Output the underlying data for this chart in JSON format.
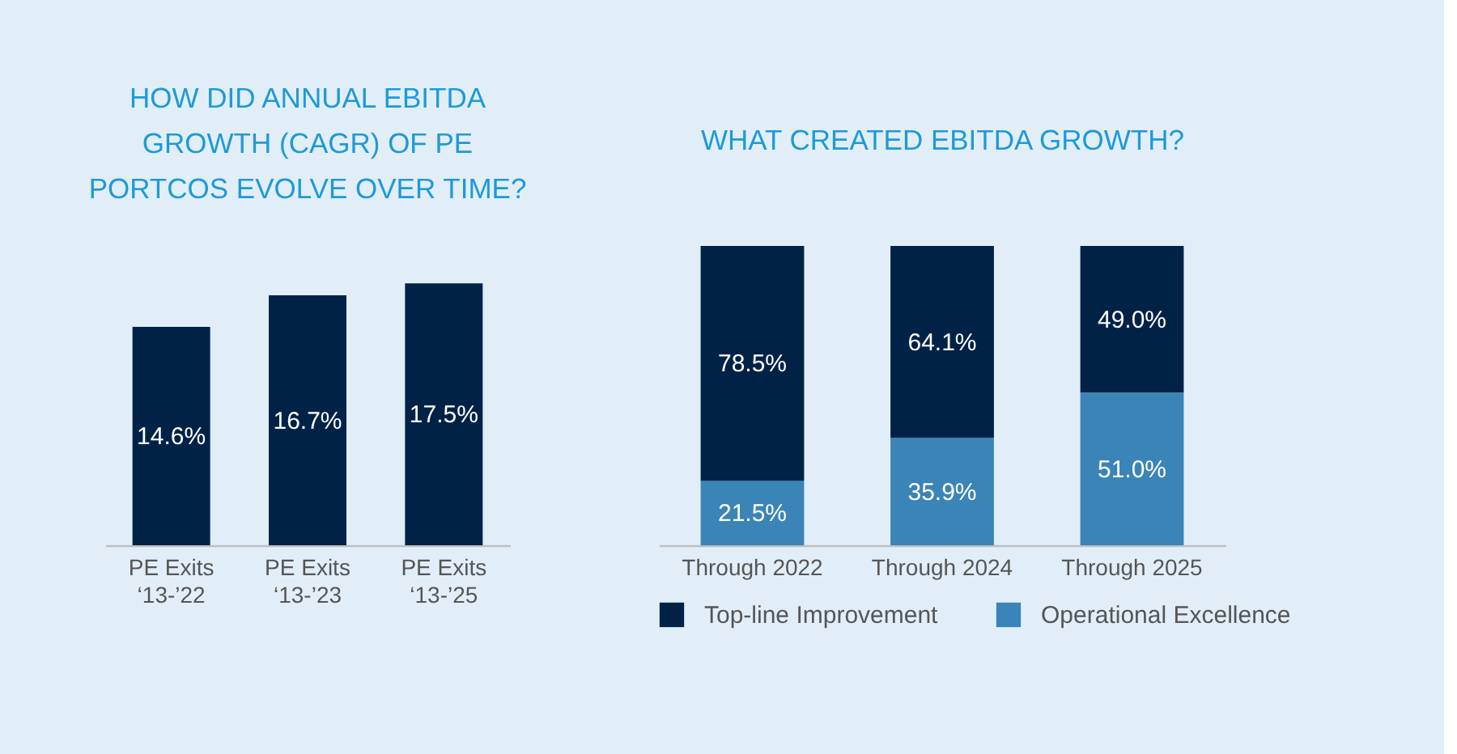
{
  "chart_data": [
    {
      "type": "bar",
      "title": "HOW DID ANNUAL EBITDA GROWTH (CAGR) OF PE PORTCOS EVOLVE OVER TIME?",
      "categories": [
        "PE Exits ‘13-’22",
        "PE Exits ‘13-’23",
        "PE Exits ‘13-’25"
      ],
      "values": [
        14.6,
        16.7,
        17.5
      ],
      "value_labels": [
        "14.6%",
        "16.7%",
        "17.5%"
      ],
      "color": "#012247",
      "tick_labels": "x"
    },
    {
      "type": "bar",
      "title": "WHAT CREATED EBITDA GROWTH?",
      "categories": [
        "Through 2022",
        "Through 2024",
        "Through 2025"
      ],
      "stacked": true,
      "series": [
        {
          "name": "Operational Excellence",
          "color": "#3a84b7",
          "values": [
            21.5,
            35.9,
            51.0
          ],
          "value_labels": [
            "21.5%",
            "35.9%",
            "51.0%"
          ]
        },
        {
          "name": "Top-line Improvement",
          "color": "#012247",
          "values": [
            78.5,
            64.1,
            49.0
          ],
          "value_labels": [
            "78.5%",
            "64.1%",
            "49.0%"
          ]
        }
      ],
      "ylim": [
        0,
        100
      ],
      "tick_labels": "x",
      "legend": "bottom"
    }
  ]
}
